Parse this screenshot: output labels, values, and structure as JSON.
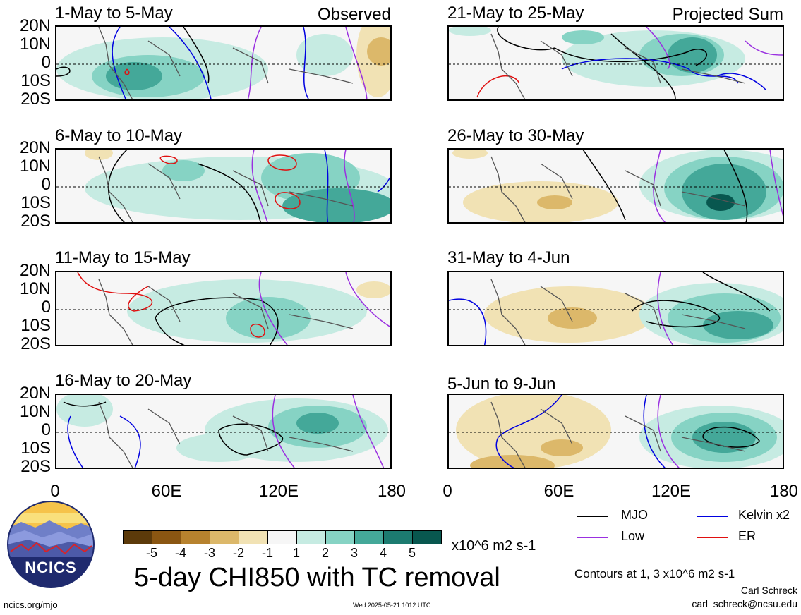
{
  "panels": [
    {
      "title": "1-May to 5-May",
      "tag": "Observed"
    },
    {
      "title": "6-May to 10-May",
      "tag": ""
    },
    {
      "title": "11-May to 15-May",
      "tag": ""
    },
    {
      "title": "16-May to 20-May",
      "tag": ""
    },
    {
      "title": "21-May to 25-May",
      "tag": "Projected Sum"
    },
    {
      "title": "26-May to 30-May",
      "tag": ""
    },
    {
      "title": "31-May to 4-Jun",
      "tag": ""
    },
    {
      "title": "5-Jun to 9-Jun",
      "tag": ""
    }
  ],
  "lat_labels": [
    "20N",
    "10N",
    "0",
    "10S",
    "20S"
  ],
  "lon_labels": [
    "0",
    "60E",
    "120E",
    "180"
  ],
  "colorbar": {
    "ticks": [
      "-5",
      "-4",
      "-3",
      "-2",
      "-1",
      "1",
      "2",
      "3",
      "4",
      "5"
    ],
    "colors": [
      "#5c3a0a",
      "#8a5612",
      "#b7822e",
      "#dcb86a",
      "#f1e2b4",
      "#f6f6f6",
      "#c6ebe2",
      "#86d3c4",
      "#44a899",
      "#1c7b70",
      "#08574f"
    ],
    "units": "x10^6 m2 s-1"
  },
  "main_title": "5-day CHI850 with TC removal",
  "legend": [
    {
      "label": "MJO",
      "color": "#000000"
    },
    {
      "label": "Kelvin x2",
      "color": "#0000e0"
    },
    {
      "label": "Low",
      "color": "#9a30e0"
    },
    {
      "label": "ER",
      "color": "#e01010"
    }
  ],
  "contour_note": "Contours at 1, 3 x10^6 m2 s-1",
  "author": "Carl Schreck",
  "email": "carl_schreck@ncsu.edu",
  "url": "ncics.org/mjo",
  "timestamp": "Wed 2025-05-21 1012 UTC",
  "logo_text": "NCICS"
}
